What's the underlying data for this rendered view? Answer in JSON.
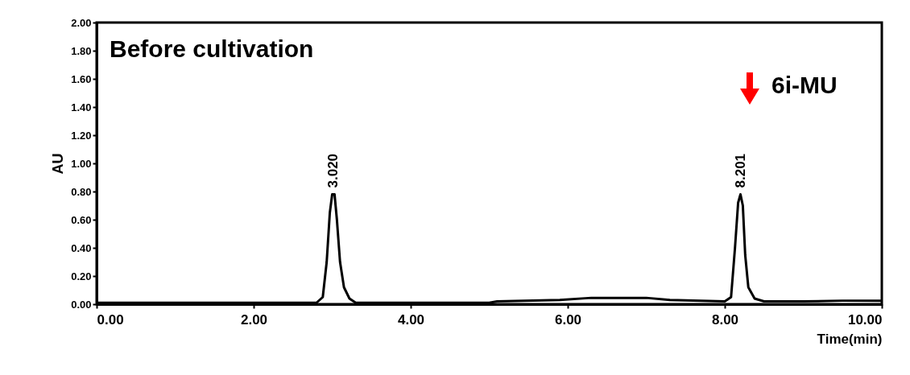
{
  "chart_data": {
    "type": "line",
    "title": "Before cultivation",
    "xlabel": "Time(min)",
    "ylabel": "AU",
    "x": [
      0,
      2.8,
      2.88,
      2.93,
      2.97,
      3.0,
      3.03,
      3.06,
      3.1,
      3.15,
      3.22,
      3.3,
      5.0,
      5.1,
      5.9,
      6.3,
      7.0,
      7.3,
      8.0,
      8.08,
      8.13,
      8.17,
      8.2,
      8.23,
      8.26,
      8.3,
      8.38,
      8.5,
      9.0,
      9.5,
      10
    ],
    "series": [
      {
        "color": "#000000",
        "values": [
          0.01,
          0.01,
          0.05,
          0.3,
          0.65,
          0.78,
          0.78,
          0.6,
          0.3,
          0.12,
          0.04,
          0.01,
          0.01,
          0.02,
          0.03,
          0.045,
          0.045,
          0.03,
          0.02,
          0.05,
          0.4,
          0.72,
          0.78,
          0.7,
          0.35,
          0.12,
          0.04,
          0.02,
          0.02,
          0.025,
          0.025
        ]
      }
    ],
    "xlim": [
      0,
      10
    ],
    "ylim": [
      0,
      2
    ],
    "xticks": [
      {
        "value": 0,
        "label": "0.00"
      },
      {
        "value": 2,
        "label": "2.00"
      },
      {
        "value": 4,
        "label": "4.00"
      },
      {
        "value": 6,
        "label": "6.00"
      },
      {
        "value": 8,
        "label": "8.00"
      },
      {
        "value": 10,
        "label": "10.00"
      }
    ],
    "yticks": [
      {
        "value": 0,
        "label": "0.00"
      },
      {
        "value": 0.2,
        "label": "0.20"
      },
      {
        "value": 0.4,
        "label": "0.40"
      },
      {
        "value": 0.6,
        "label": "0.60"
      },
      {
        "value": 0.8,
        "label": "0.80"
      },
      {
        "value": 1,
        "label": "1.00"
      },
      {
        "value": 1.2,
        "label": "1.20"
      },
      {
        "value": 1.4,
        "label": "1.40"
      },
      {
        "value": 1.6,
        "label": "1.60"
      },
      {
        "value": 1.8,
        "label": "1.80"
      },
      {
        "value": 2,
        "label": "2.00"
      }
    ],
    "annotations": [
      {
        "text": "3.020",
        "x": 3.02,
        "y": 0.78
      },
      {
        "text": "8.201",
        "x": 8.201,
        "y": 0.78
      },
      "6i-MU"
    ],
    "grid": false,
    "marker": "none",
    "line_style": "solid"
  }
}
